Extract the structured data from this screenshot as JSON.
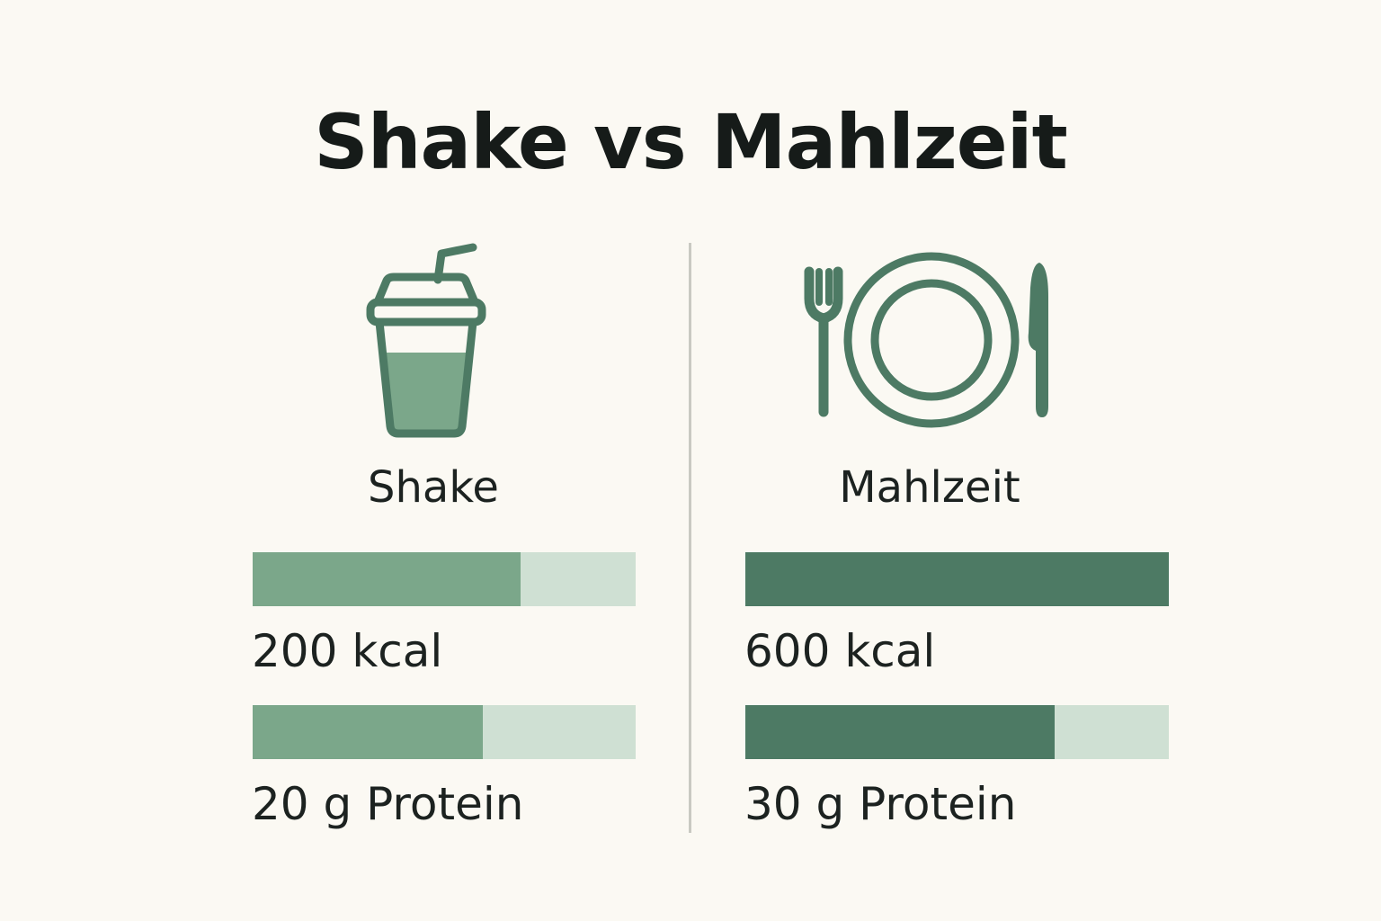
{
  "title": "Shake vs Mahlzeit",
  "colors": {
    "background": "#fbf9f3",
    "shake_fill": "#7ba78a",
    "meal_fill": "#4d7a64",
    "track": "#cfe0d3",
    "icon_stroke": "#4d7a64",
    "shake_liquid": "#7ba78a"
  },
  "icons": {
    "shake": "shake-cup-icon",
    "meal": "plate-fork-knife-icon"
  },
  "columns": [
    {
      "label": "Shake",
      "kcal_text": "200 kcal",
      "protein_text": "20 g Protein"
    },
    {
      "label": "Mahlzeit",
      "kcal_text": "600 kcal",
      "protein_text": "30 g Protein"
    }
  ],
  "chart_data": {
    "type": "bar",
    "title": "Shake vs Mahlzeit",
    "categories": [
      "Shake",
      "Mahlzeit"
    ],
    "series": [
      {
        "name": "kcal",
        "values": [
          200,
          600
        ],
        "fill_fraction": [
          0.7,
          1.0
        ]
      },
      {
        "name": "Protein",
        "values": [
          20,
          30
        ],
        "fill_fraction": [
          0.6,
          0.73
        ]
      }
    ],
    "grid": false,
    "legend": "none"
  }
}
